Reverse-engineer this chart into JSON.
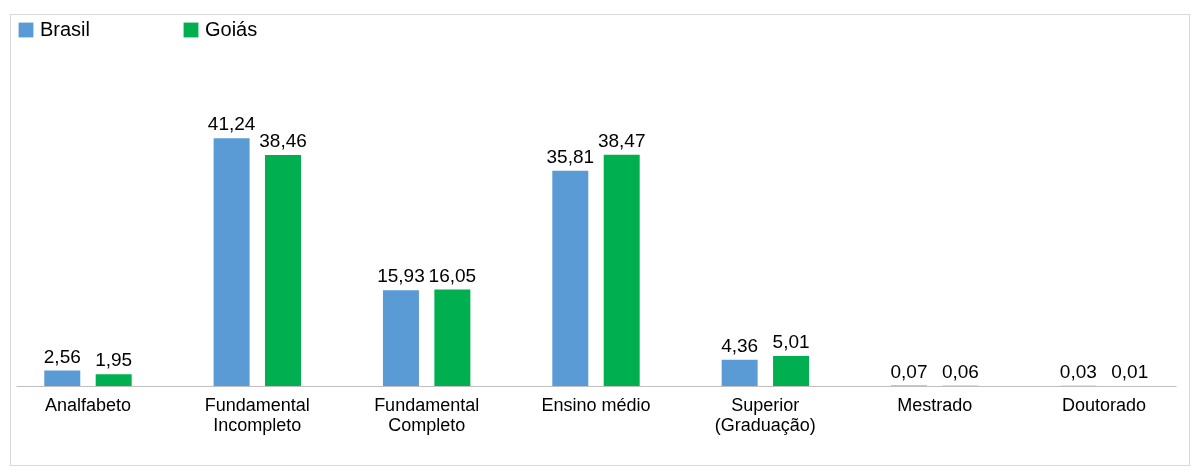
{
  "chart_data": {
    "type": "bar",
    "categories": [
      "Analfabeto",
      "Fundamental\nIncompleto",
      "Fundamental\nCompleto",
      "Ensino médio",
      "Superior\n(Graduação)",
      "Mestrado",
      "Doutorado"
    ],
    "series": [
      {
        "name": "Brasil",
        "color": "#5b9bd5",
        "values": [
          2.56,
          41.24,
          15.93,
          35.81,
          4.36,
          0.07,
          0.03
        ],
        "value_labels": [
          "2,56",
          "41,24",
          "15,93",
          "35,81",
          "4,36",
          "0,07",
          "0,03"
        ]
      },
      {
        "name": "Goiás",
        "color": "#00b050",
        "values": [
          1.95,
          38.46,
          16.05,
          38.47,
          5.01,
          0.06,
          0.01
        ],
        "value_labels": [
          "1,95",
          "38,46",
          "16,05",
          "38,47",
          "5,01",
          "0,06",
          "0,01"
        ]
      }
    ],
    "legend": "top",
    "grid": false
  }
}
